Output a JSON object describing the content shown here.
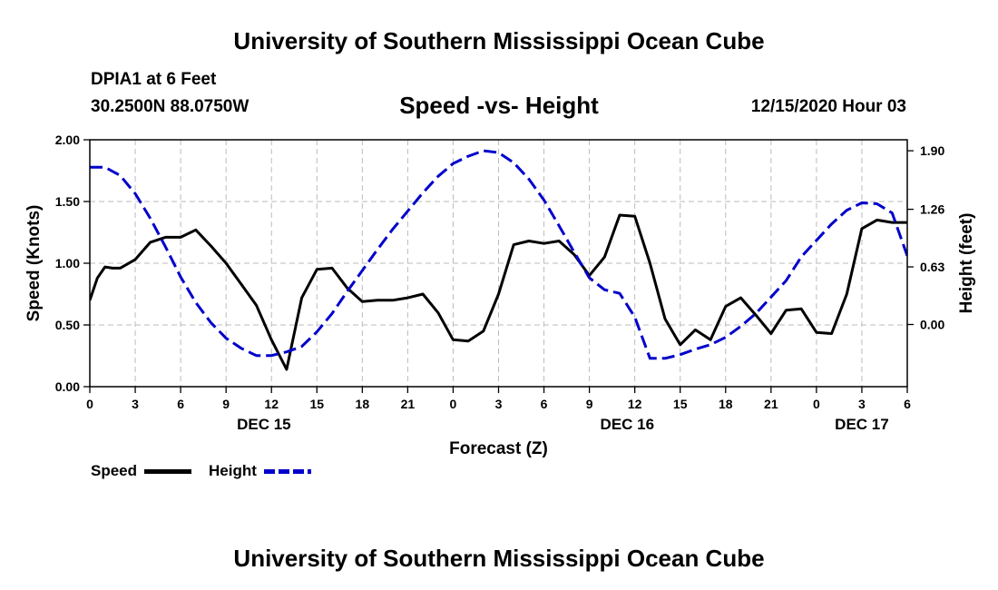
{
  "header": {
    "title": "University of Southern Mississippi Ocean Cube",
    "station": "DPIA1 at 6 Feet",
    "coords": "30.2500N 88.0750W",
    "chart_title": "Speed -vs- Height",
    "datetime": "12/15/2020 Hour 03"
  },
  "footer": {
    "title": "University of Southern Mississippi Ocean Cube"
  },
  "legend": {
    "speed_label": "Speed",
    "height_label": "Height"
  },
  "colors": {
    "speed": "#000000",
    "height": "#0000cc",
    "grid": "#bbbbbb"
  },
  "chart_data": {
    "type": "line",
    "title": "Speed -vs- Height",
    "xlabel": "Forecast (Z)",
    "ylabel": "Speed (Knots)",
    "y2label": "Height (feet)",
    "xlim": [
      0,
      54
    ],
    "ylim": [
      0,
      2
    ],
    "y2lim": [
      -0.68,
      2.02
    ],
    "x_ticks": [
      0,
      3,
      6,
      9,
      12,
      15,
      18,
      21,
      24,
      27,
      30,
      33,
      36,
      39,
      42,
      45,
      48,
      51,
      54
    ],
    "x_tick_labels": [
      "0",
      "3",
      "6",
      "9",
      "12",
      "15",
      "18",
      "21",
      "0",
      "3",
      "6",
      "9",
      "12",
      "15",
      "18",
      "21",
      "0",
      "3",
      "6"
    ],
    "y_ticks": [
      0,
      0.5,
      1,
      1.5,
      2
    ],
    "y_tick_labels": [
      "0.00",
      "0.50",
      "1.00",
      "1.50",
      "2.00"
    ],
    "y2_ticks": [
      0,
      0.63,
      1.26,
      1.9
    ],
    "y2_tick_labels": [
      "0.00",
      "0.63",
      "1.26",
      "1.90"
    ],
    "day_labels": [
      {
        "x": 11.5,
        "label": "DEC 15"
      },
      {
        "x": 35.5,
        "label": "DEC 16"
      },
      {
        "x": 51,
        "label": "DEC 17"
      }
    ],
    "grid": true,
    "series": [
      {
        "name": "Speed",
        "axis": "left",
        "style": "solid",
        "x": [
          0,
          0.5,
          1,
          1.5,
          2,
          3,
          4,
          5,
          6,
          7,
          8,
          9,
          10,
          11,
          12,
          13,
          14,
          15,
          16,
          17,
          18,
          19,
          20,
          21,
          22,
          23,
          24,
          25,
          26,
          27,
          28,
          29,
          30,
          31,
          32,
          33,
          34,
          35,
          36,
          37,
          38,
          39,
          40,
          41,
          42,
          43,
          44,
          45,
          46,
          47,
          48,
          49,
          50,
          51,
          52,
          53,
          54
        ],
        "y": [
          0.7,
          0.88,
          0.97,
          0.96,
          0.96,
          1.03,
          1.17,
          1.21,
          1.21,
          1.27,
          1.14,
          1.0,
          0.83,
          0.66,
          0.38,
          0.14,
          0.72,
          0.95,
          0.96,
          0.8,
          0.69,
          0.7,
          0.7,
          0.72,
          0.75,
          0.6,
          0.38,
          0.37,
          0.45,
          0.75,
          1.15,
          1.18,
          1.16,
          1.18,
          1.07,
          0.9,
          1.05,
          1.39,
          1.38,
          1.0,
          0.55,
          0.34,
          0.46,
          0.38,
          0.65,
          0.72,
          0.58,
          0.43,
          0.62,
          0.63,
          0.44,
          0.43,
          0.75,
          1.28,
          1.35,
          1.33,
          1.33
        ]
      },
      {
        "name": "Height",
        "axis": "right",
        "style": "dashed",
        "x": [
          0,
          1,
          2,
          3,
          4,
          5,
          6,
          7,
          8,
          9,
          10,
          11,
          12,
          13,
          14,
          15,
          16,
          17,
          18,
          19,
          20,
          21,
          22,
          23,
          24,
          25,
          26,
          27,
          28,
          29,
          30,
          31,
          32,
          33,
          34,
          35,
          36,
          37,
          38,
          39,
          40,
          41,
          42,
          43,
          44,
          45,
          46,
          47,
          48,
          49,
          50,
          51,
          52,
          53,
          54
        ],
        "y": [
          1.72,
          1.72,
          1.63,
          1.43,
          1.16,
          0.85,
          0.52,
          0.24,
          0.02,
          -0.15,
          -0.26,
          -0.34,
          -0.34,
          -0.3,
          -0.24,
          -0.08,
          0.12,
          0.36,
          0.59,
          0.82,
          1.04,
          1.24,
          1.44,
          1.62,
          1.76,
          1.84,
          1.9,
          1.88,
          1.77,
          1.59,
          1.36,
          1.08,
          0.79,
          0.51,
          0.38,
          0.34,
          0.08,
          -0.37,
          -0.37,
          -0.33,
          -0.27,
          -0.22,
          -0.14,
          -0.02,
          0.12,
          0.3,
          0.48,
          0.74,
          0.92,
          1.1,
          1.25,
          1.33,
          1.32,
          1.22,
          0.75
        ]
      }
    ]
  }
}
